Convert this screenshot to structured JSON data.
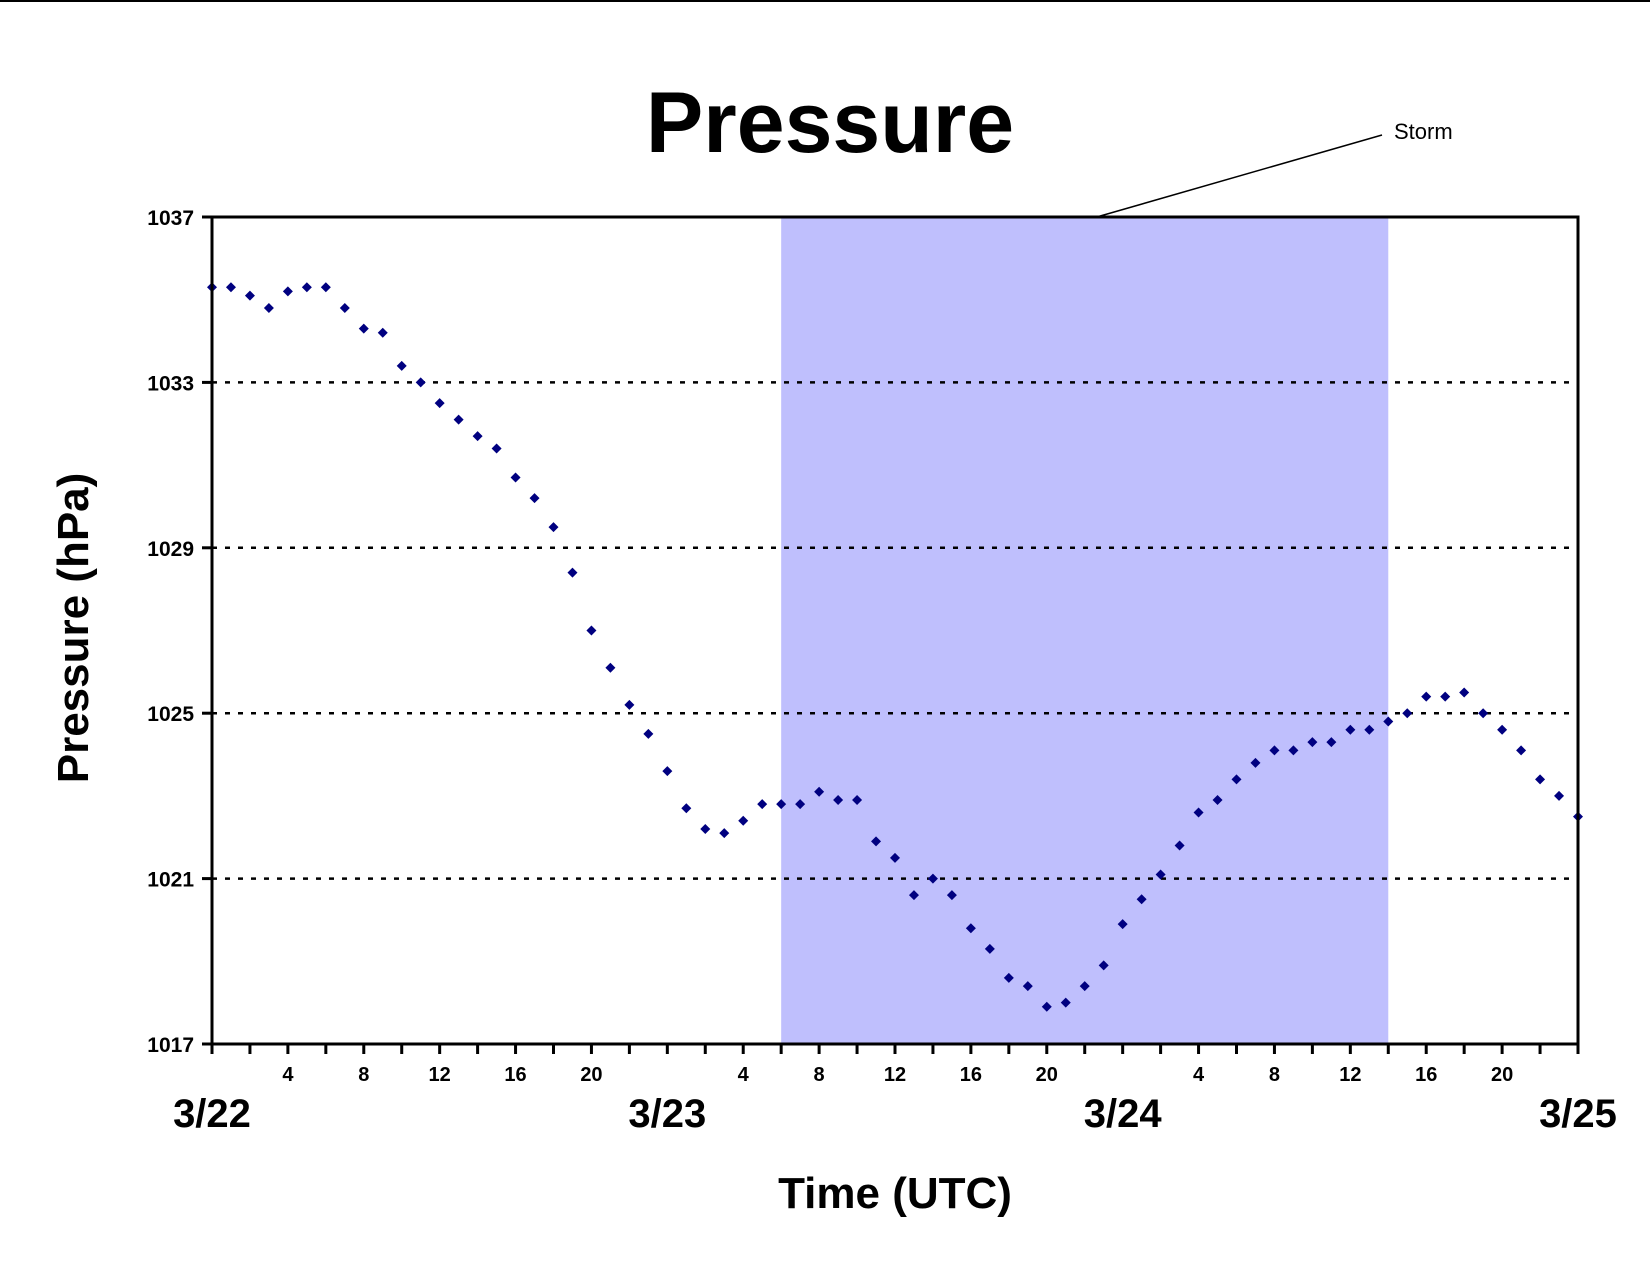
{
  "chart_data": {
    "type": "scatter",
    "title": "Pressure",
    "xlabel": "Time (UTC)",
    "ylabel": "Pressure (hPa)",
    "x_unit": "hours since 3/22 00 UTC",
    "xlim": [
      0,
      72
    ],
    "ylim": [
      1017,
      1037
    ],
    "yticks": [
      1017,
      1021,
      1025,
      1029,
      1033,
      1037
    ],
    "grid": "dotted horizontal at 1021, 1025, 1029, 1033",
    "hour_ticks": [
      {
        "x": 4,
        "label": "4"
      },
      {
        "x": 8,
        "label": "8"
      },
      {
        "x": 12,
        "label": "12"
      },
      {
        "x": 16,
        "label": "16"
      },
      {
        "x": 20,
        "label": "20"
      },
      {
        "x": 28,
        "label": "4"
      },
      {
        "x": 32,
        "label": "8"
      },
      {
        "x": 36,
        "label": "12"
      },
      {
        "x": 40,
        "label": "16"
      },
      {
        "x": 44,
        "label": "20"
      },
      {
        "x": 52,
        "label": "4"
      },
      {
        "x": 56,
        "label": "8"
      },
      {
        "x": 60,
        "label": "12"
      },
      {
        "x": 64,
        "label": "16"
      },
      {
        "x": 68,
        "label": "20"
      }
    ],
    "day_ticks": [
      {
        "x": 0,
        "label": "3/22"
      },
      {
        "x": 24,
        "label": "3/23"
      },
      {
        "x": 48,
        "label": "3/24"
      },
      {
        "x": 72,
        "label": "3/25"
      }
    ],
    "annotation": {
      "label": "Storm",
      "x_start": 30,
      "x_end": 62,
      "color": "#bfbffd"
    },
    "series": [
      {
        "name": "",
        "color": "#000080",
        "marker": "diamond",
        "points": [
          [
            0,
            1035.3
          ],
          [
            1,
            1035.3
          ],
          [
            2,
            1035.1
          ],
          [
            3,
            1034.8
          ],
          [
            4,
            1035.2
          ],
          [
            5,
            1035.3
          ],
          [
            6,
            1035.3
          ],
          [
            7,
            1034.8
          ],
          [
            8,
            1034.3
          ],
          [
            9,
            1034.2
          ],
          [
            10,
            1033.4
          ],
          [
            11,
            1033.0
          ],
          [
            12,
            1032.5
          ],
          [
            13,
            1032.1
          ],
          [
            14,
            1031.7
          ],
          [
            15,
            1031.4
          ],
          [
            16,
            1030.7
          ],
          [
            17,
            1030.2
          ],
          [
            18,
            1029.5
          ],
          [
            19,
            1028.4
          ],
          [
            20,
            1027.0
          ],
          [
            21,
            1026.1
          ],
          [
            22,
            1025.2
          ],
          [
            23,
            1024.5
          ],
          [
            24,
            1023.6
          ],
          [
            25,
            1022.7
          ],
          [
            26,
            1022.2
          ],
          [
            27,
            1022.1
          ],
          [
            28,
            1022.4
          ],
          [
            29,
            1022.8
          ],
          [
            30,
            1022.8
          ],
          [
            31,
            1022.8
          ],
          [
            32,
            1023.1
          ],
          [
            33,
            1022.9
          ],
          [
            34,
            1022.9
          ],
          [
            35,
            1021.9
          ],
          [
            36,
            1021.5
          ],
          [
            37,
            1020.6
          ],
          [
            38,
            1021.0
          ],
          [
            39,
            1020.6
          ],
          [
            40,
            1019.8
          ],
          [
            41,
            1019.3
          ],
          [
            42,
            1018.6
          ],
          [
            43,
            1018.4
          ],
          [
            44,
            1017.9
          ],
          [
            45,
            1018.0
          ],
          [
            46,
            1018.4
          ],
          [
            47,
            1018.9
          ],
          [
            48,
            1019.9
          ],
          [
            49,
            1020.5
          ],
          [
            50,
            1021.1
          ],
          [
            51,
            1021.8
          ],
          [
            52,
            1022.6
          ],
          [
            53,
            1022.9
          ],
          [
            54,
            1023.4
          ],
          [
            55,
            1023.8
          ],
          [
            56,
            1024.1
          ],
          [
            57,
            1024.1
          ],
          [
            58,
            1024.3
          ],
          [
            59,
            1024.3
          ],
          [
            60,
            1024.6
          ],
          [
            61,
            1024.6
          ],
          [
            62,
            1024.8
          ],
          [
            63,
            1025.0
          ],
          [
            64,
            1025.4
          ],
          [
            65,
            1025.4
          ],
          [
            66,
            1025.5
          ],
          [
            67,
            1025.0
          ],
          [
            68,
            1024.6
          ],
          [
            69,
            1024.1
          ],
          [
            70,
            1023.4
          ],
          [
            71,
            1023.0
          ],
          [
            72,
            1022.5
          ]
        ]
      }
    ]
  }
}
